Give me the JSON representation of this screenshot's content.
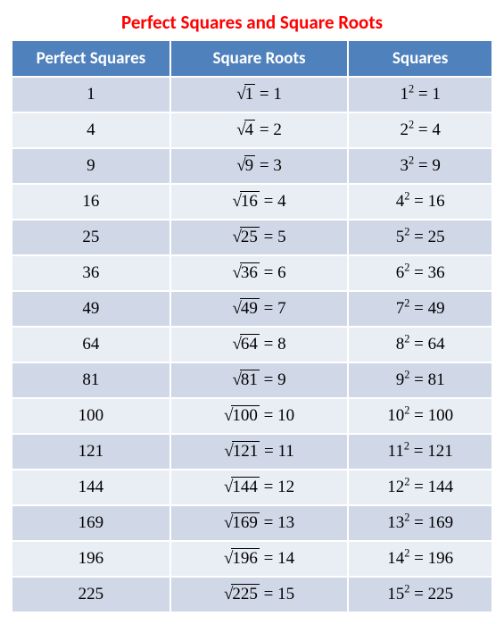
{
  "title": "Perfect Squares and Square Roots",
  "title_color": "#ff0000",
  "title_fontsize": 21,
  "header_bg": "#4f81bd",
  "header_color": "#ffffff",
  "header_fontsize": 19,
  "row_odd_bg": "#d0d8e8",
  "row_even_bg": "#e9edf4",
  "cell_fontsize": 19,
  "columns": [
    "Perfect Squares",
    "Square Roots",
    "Squares"
  ],
  "rows": [
    {
      "square": "1",
      "root_radicand": "1",
      "root_result": "1",
      "base": "1",
      "result": "1"
    },
    {
      "square": "4",
      "root_radicand": "4",
      "root_result": "2",
      "base": "2",
      "result": "4"
    },
    {
      "square": "9",
      "root_radicand": "9",
      "root_result": "3",
      "base": "3",
      "result": "9"
    },
    {
      "square": "16",
      "root_radicand": "16",
      "root_result": "4",
      "base": "4",
      "result": "16"
    },
    {
      "square": "25",
      "root_radicand": "25",
      "root_result": "5",
      "base": "5",
      "result": "25"
    },
    {
      "square": "36",
      "root_radicand": "36",
      "root_result": "6",
      "base": "6",
      "result": "36"
    },
    {
      "square": "49",
      "root_radicand": "49",
      "root_result": "7",
      "base": "7",
      "result": "49"
    },
    {
      "square": "64",
      "root_radicand": "64",
      "root_result": "8",
      "base": "8",
      "result": "64"
    },
    {
      "square": "81",
      "root_radicand": "81",
      "root_result": "9",
      "base": "9",
      "result": "81"
    },
    {
      "square": "100",
      "root_radicand": "100",
      "root_result": "10",
      "base": "10",
      "result": "100"
    },
    {
      "square": "121",
      "root_radicand": "121",
      "root_result": "11",
      "base": "11",
      "result": "121"
    },
    {
      "square": "144",
      "root_radicand": "144",
      "root_result": "12",
      "base": "12",
      "result": "144"
    },
    {
      "square": "169",
      "root_radicand": "169",
      "root_result": "13",
      "base": "13",
      "result": "169"
    },
    {
      "square": "196",
      "root_radicand": "196",
      "root_result": "14",
      "base": "14",
      "result": "196"
    },
    {
      "square": "225",
      "root_radicand": "225",
      "root_result": "15",
      "base": "15",
      "result": "225"
    }
  ]
}
